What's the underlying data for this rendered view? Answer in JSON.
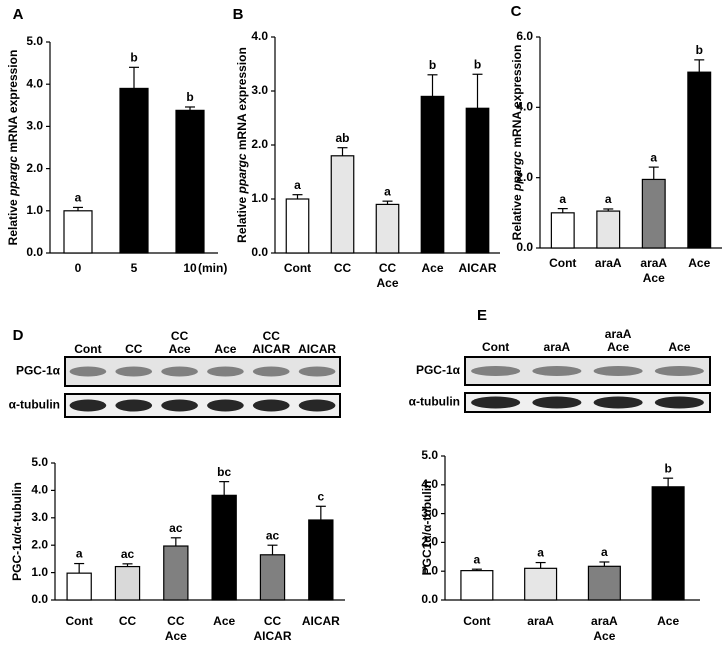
{
  "chart_data": [
    {
      "type": "bar",
      "panel": "A",
      "y_label": [
        "Relative ",
        "ppargc",
        " mRNA expression"
      ],
      "x_label": "(min)",
      "categories": [
        "0",
        "5",
        "10"
      ],
      "values": [
        1.0,
        3.9,
        3.38
      ],
      "errors": [
        0.08,
        0.5,
        0.08
      ],
      "colors": [
        "#ffffff",
        "#000000",
        "#000000"
      ],
      "annotations": [
        "a",
        "b",
        "b"
      ],
      "ylim": [
        0,
        5
      ],
      "yticks": [
        {
          "value": 0,
          "label": "0.0"
        },
        {
          "value": 1,
          "label": "1.0"
        },
        {
          "value": 2,
          "label": "2.0"
        },
        {
          "value": 3,
          "label": "3.0"
        },
        {
          "value": 4,
          "label": "4.0"
        },
        {
          "value": 5,
          "label": "5.0"
        }
      ]
    },
    {
      "type": "bar",
      "panel": "B",
      "y_label": [
        "Relative ",
        "ppargc",
        " mRNA expression"
      ],
      "categories": [
        "Cont",
        "CC",
        [
          "CC",
          "Ace"
        ],
        "Ace",
        "AICAR"
      ],
      "values": [
        1.0,
        1.8,
        0.9,
        2.9,
        2.68
      ],
      "errors": [
        0.08,
        0.15,
        0.06,
        0.4,
        0.63
      ],
      "colors": [
        "#ffffff",
        "#e6e6e6",
        "#e6e6e6",
        "#000000",
        "#000000"
      ],
      "annotations": [
        "a",
        "ab",
        "a",
        "b",
        "b"
      ],
      "ylim": [
        0,
        4
      ],
      "yticks": [
        {
          "value": 0,
          "label": "0.0"
        },
        {
          "value": 1,
          "label": "1.0"
        },
        {
          "value": 2,
          "label": "2.0"
        },
        {
          "value": 3,
          "label": "3.0"
        },
        {
          "value": 4,
          "label": "4.0"
        }
      ]
    },
    {
      "type": "bar",
      "panel": "C",
      "y_label": [
        "Relative ",
        "ppargc",
        " mRNA expression"
      ],
      "categories": [
        "Cont",
        "araA",
        [
          "araA",
          "Ace"
        ],
        "Ace"
      ],
      "values": [
        1.0,
        1.05,
        1.95,
        5.0
      ],
      "errors": [
        0.12,
        0.06,
        0.35,
        0.35
      ],
      "colors": [
        "#ffffff",
        "#e6e6e6",
        "#808080",
        "#000000"
      ],
      "annotations": [
        "a",
        "a",
        "a",
        "b"
      ],
      "ylim": [
        0,
        6
      ],
      "yticks": [
        {
          "value": 0,
          "label": "0.0"
        },
        {
          "value": 2,
          "label": "2.0"
        },
        {
          "value": 4,
          "label": "4.0"
        },
        {
          "value": 6,
          "label": "6.0"
        }
      ]
    },
    {
      "type": "bar",
      "panel": "D",
      "y_label": [
        "PGC-1α/α-tubulin"
      ],
      "blot": {
        "lanes": [
          "Cont",
          "CC",
          [
            "CC",
            "Ace"
          ],
          "Ace",
          [
            "CC",
            "AICAR"
          ],
          "AICAR"
        ],
        "rows": [
          "PGC-1α",
          "α-tubulin"
        ]
      },
      "categories": [
        "Cont",
        "CC",
        [
          "CC",
          "Ace"
        ],
        "Ace",
        [
          "CC",
          "AICAR"
        ],
        "AICAR"
      ],
      "values": [
        0.98,
        1.22,
        1.97,
        3.82,
        1.65,
        2.92
      ],
      "errors": [
        0.35,
        0.1,
        0.3,
        0.5,
        0.35,
        0.5
      ],
      "colors": [
        "#ffffff",
        "#d9d9d9",
        "#808080",
        "#000000",
        "#808080",
        "#000000"
      ],
      "annotations": [
        "a",
        "ac",
        "ac",
        "bc",
        "ac",
        "c"
      ],
      "ylim": [
        0,
        5
      ],
      "yticks": [
        {
          "value": 0,
          "label": "0.0"
        },
        {
          "value": 1,
          "label": "1.0"
        },
        {
          "value": 2,
          "label": "2.0"
        },
        {
          "value": 3,
          "label": "3.0"
        },
        {
          "value": 4,
          "label": "4.0"
        },
        {
          "value": 5,
          "label": "5.0"
        }
      ]
    },
    {
      "type": "bar",
      "panel": "E",
      "y_label": [
        "PGC1α/α-tubulin"
      ],
      "blot": {
        "lanes": [
          "Cont",
          "araA",
          [
            "araA",
            "Ace"
          ],
          "Ace"
        ],
        "rows": [
          "PGC-1α",
          "α-tubulin"
        ]
      },
      "categories": [
        "Cont",
        "araA",
        [
          "araA",
          "Ace"
        ],
        "Ace"
      ],
      "values": [
        1.02,
        1.1,
        1.17,
        3.93
      ],
      "errors": [
        0.05,
        0.2,
        0.15,
        0.3
      ],
      "colors": [
        "#ffffff",
        "#e6e6e6",
        "#808080",
        "#000000"
      ],
      "annotations": [
        "a",
        "a",
        "a",
        "b"
      ],
      "ylim": [
        0,
        5
      ],
      "yticks": [
        {
          "value": 0,
          "label": "0.0"
        },
        {
          "value": 1,
          "label": "1.0"
        },
        {
          "value": 2,
          "label": "2.0"
        },
        {
          "value": 3,
          "label": "3.0"
        },
        {
          "value": 4,
          "label": "4.0"
        },
        {
          "value": 5,
          "label": "5.0"
        }
      ]
    }
  ]
}
